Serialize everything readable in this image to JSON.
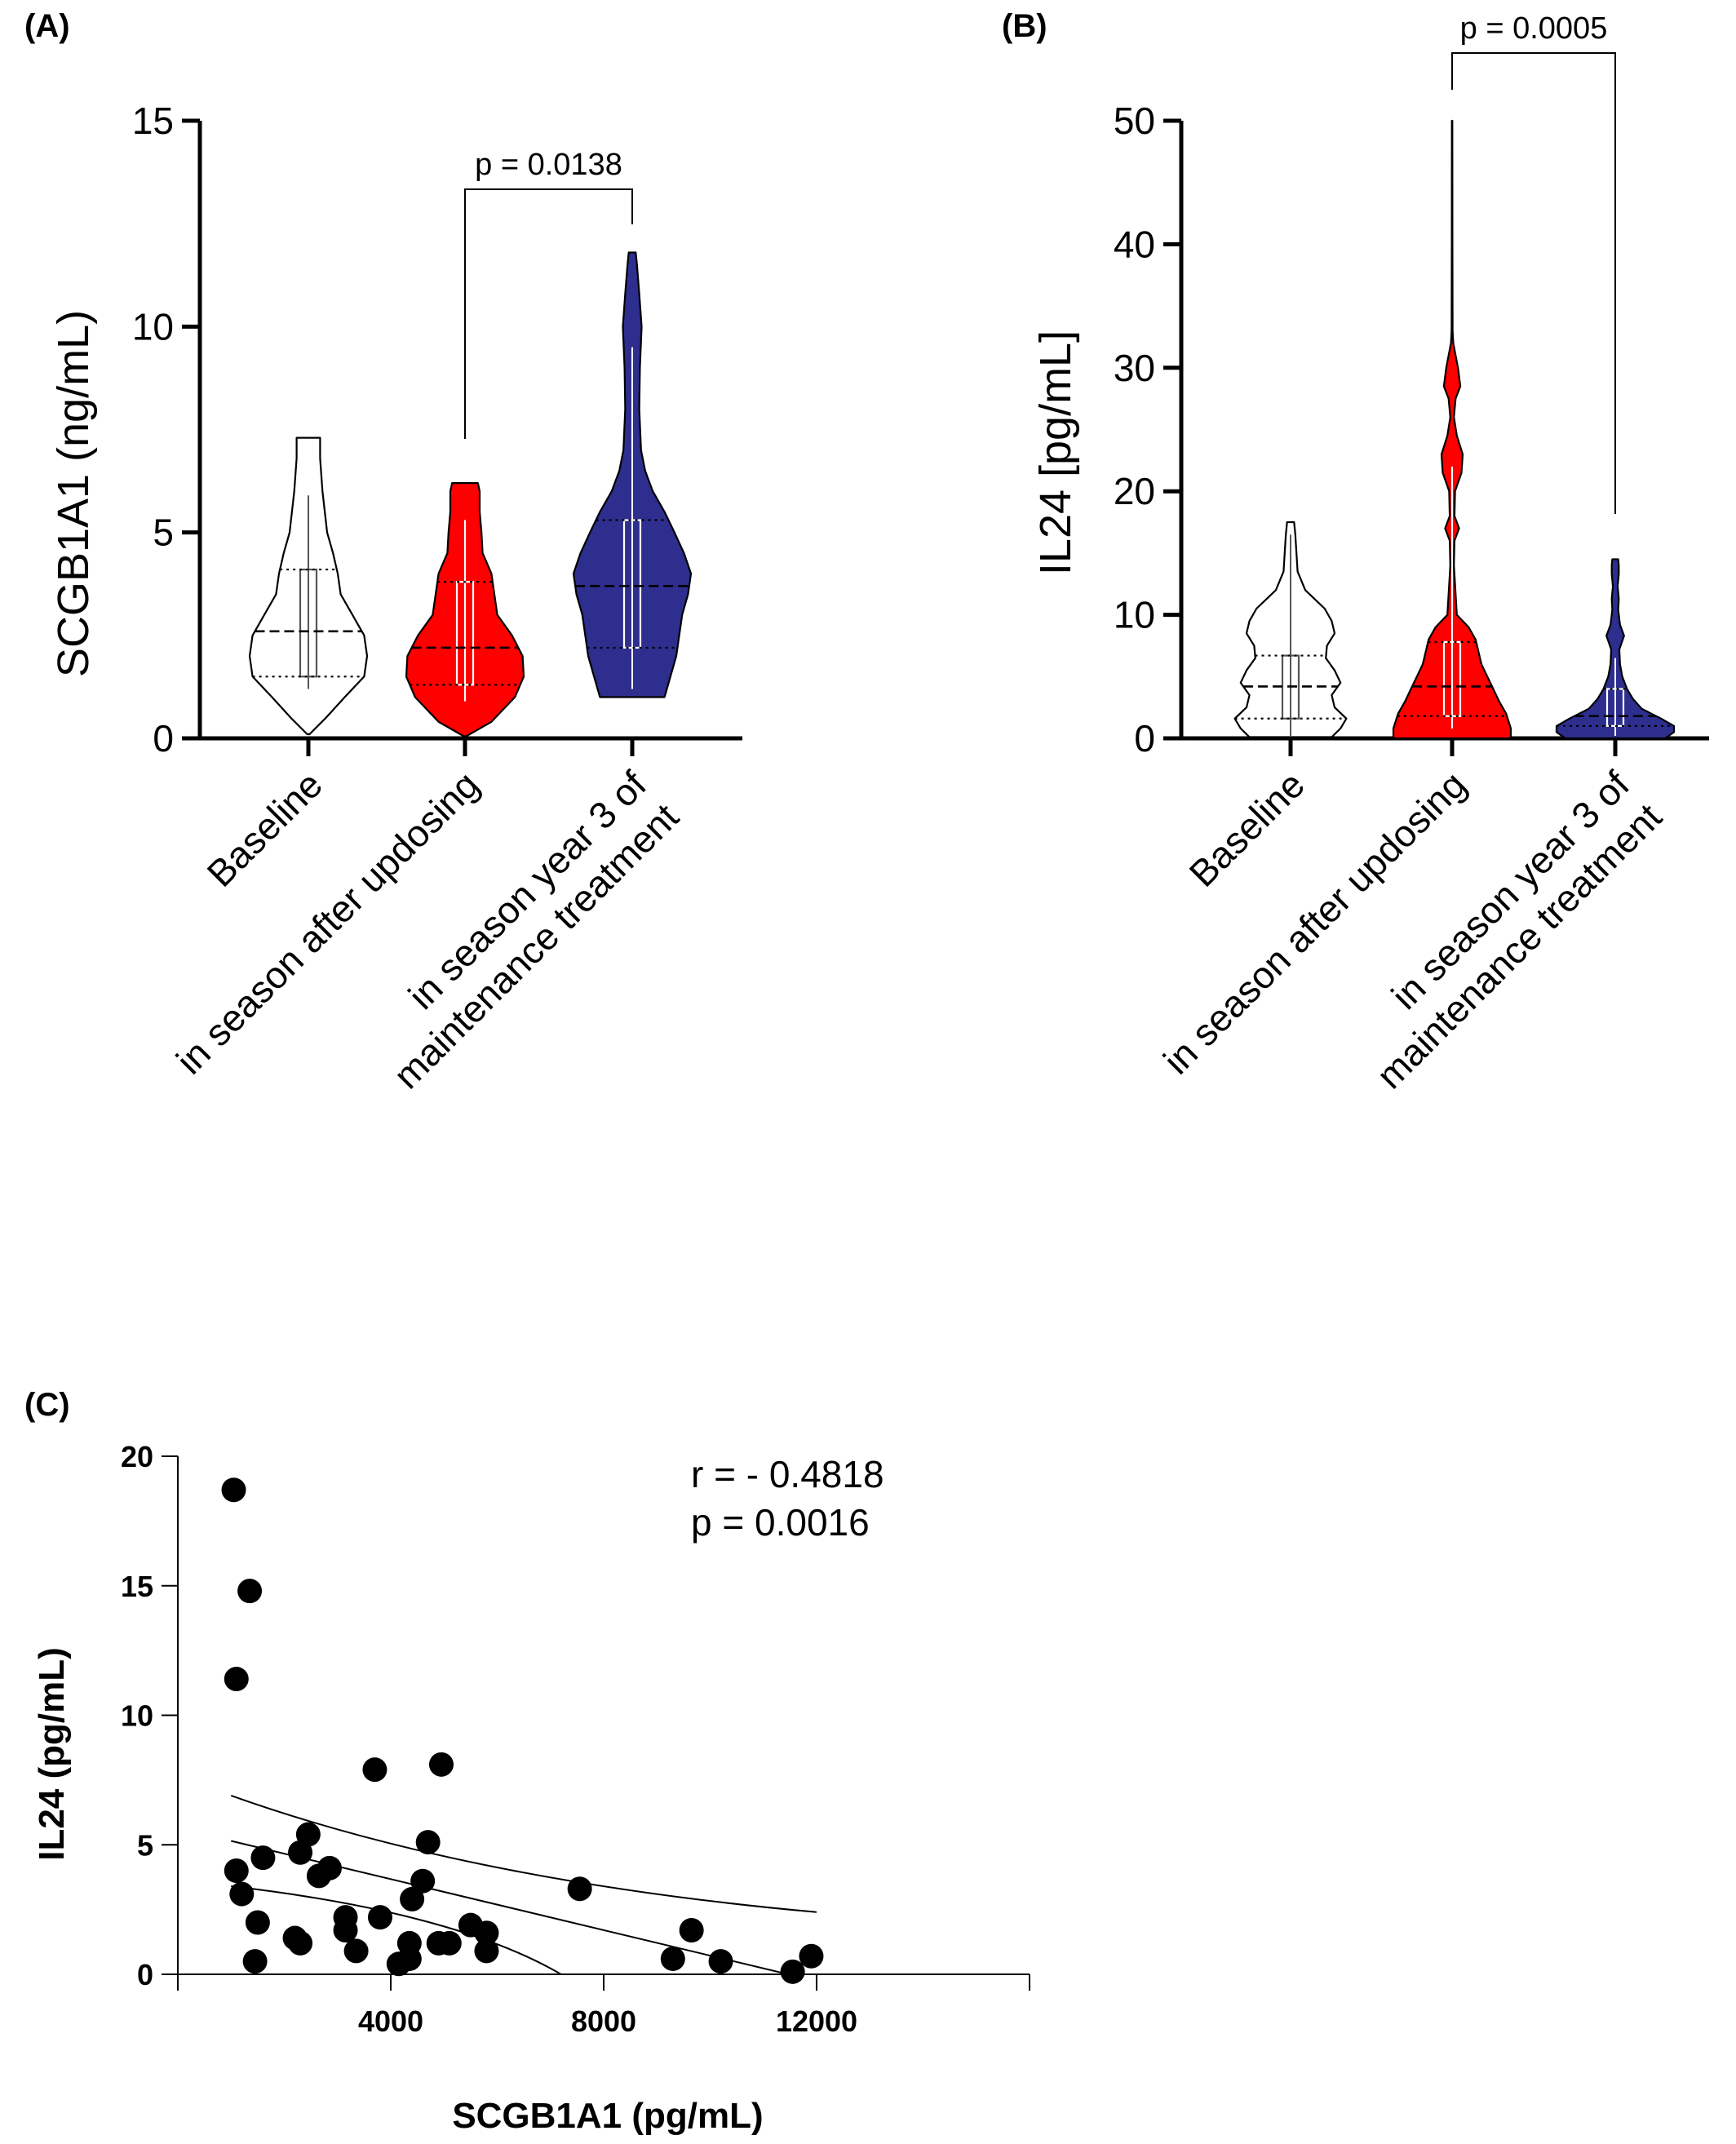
{
  "chart_data": [
    {
      "panel": "(A)",
      "type": "violin",
      "ylabel": "SCGB1A1 (ng/mL)",
      "ylim": [
        0,
        15
      ],
      "yticks": [
        0,
        5,
        10,
        15
      ],
      "categories": [
        "Baseline",
        "in season after updosing",
        "in season year 3 of maintenance treatment"
      ],
      "category_lines": [
        [
          "Baseline"
        ],
        [
          "in season after updosing"
        ],
        [
          "in season year 3 of",
          "maintenance treatment"
        ]
      ],
      "colors": [
        "#ffffff",
        "#ff0000",
        "#2e2e8f"
      ],
      "violins": [
        {
          "min": 0.1,
          "max": 7.3,
          "median": 2.6,
          "q1": 1.5,
          "q3": 4.1,
          "whisker_low": 1.2,
          "whisker_high": 5.9,
          "profile": [
            [
              0.1,
              0.02
            ],
            [
              0.5,
              0.3
            ],
            [
              1.0,
              0.62
            ],
            [
              1.5,
              0.95
            ],
            [
              2.0,
              1.0
            ],
            [
              2.5,
              0.95
            ],
            [
              3.0,
              0.75
            ],
            [
              3.5,
              0.55
            ],
            [
              4.0,
              0.5
            ],
            [
              4.5,
              0.42
            ],
            [
              5.0,
              0.32
            ],
            [
              6.0,
              0.24
            ],
            [
              6.8,
              0.2
            ],
            [
              7.3,
              0.2
            ]
          ]
        },
        {
          "min": 0.05,
          "max": 6.2,
          "median": 2.2,
          "q1": 1.3,
          "q3": 3.8,
          "whisker_low": 0.9,
          "whisker_high": 5.3,
          "profile": [
            [
              0.05,
              0.02
            ],
            [
              0.4,
              0.45
            ],
            [
              1.0,
              0.85
            ],
            [
              1.5,
              1.0
            ],
            [
              2.0,
              0.98
            ],
            [
              2.5,
              0.8
            ],
            [
              3.0,
              0.55
            ],
            [
              3.5,
              0.5
            ],
            [
              4.0,
              0.45
            ],
            [
              4.5,
              0.3
            ],
            [
              5.0,
              0.28
            ],
            [
              5.5,
              0.25
            ],
            [
              6.0,
              0.25
            ],
            [
              6.2,
              0.22
            ]
          ]
        },
        {
          "min": 1.0,
          "max": 11.8,
          "median": 3.7,
          "q1": 2.2,
          "q3": 5.3,
          "whisker_low": 1.2,
          "whisker_high": 9.5,
          "profile": [
            [
              1.0,
              0.55
            ],
            [
              1.5,
              0.65
            ],
            [
              2.0,
              0.75
            ],
            [
              2.5,
              0.8
            ],
            [
              3.0,
              0.85
            ],
            [
              3.5,
              0.95
            ],
            [
              4.0,
              1.0
            ],
            [
              4.5,
              0.88
            ],
            [
              5.0,
              0.72
            ],
            [
              5.5,
              0.55
            ],
            [
              6.0,
              0.35
            ],
            [
              6.5,
              0.22
            ],
            [
              7.0,
              0.15
            ],
            [
              8.0,
              0.12
            ],
            [
              9.0,
              0.13
            ],
            [
              10.0,
              0.16
            ],
            [
              10.8,
              0.12
            ],
            [
              11.5,
              0.08
            ],
            [
              11.8,
              0.06
            ]
          ]
        }
      ],
      "comparison": {
        "from": 1,
        "to": 2,
        "label": "p = 0.0138"
      }
    },
    {
      "panel": "(B)",
      "type": "violin",
      "ylabel": "IL24 [pg/mL]",
      "ylim": [
        0,
        50
      ],
      "yticks": [
        0,
        10,
        20,
        30,
        40,
        50
      ],
      "categories": [
        "Baseline",
        "in season after updosing",
        "in season year 3 of maintenance treatment"
      ],
      "category_lines": [
        [
          "Baseline"
        ],
        [
          "in season after updosing"
        ],
        [
          "in season year 3 of",
          "maintenance treatment"
        ]
      ],
      "colors": [
        "#ffffff",
        "#ff0000",
        "#2e2e8f"
      ],
      "violins": [
        {
          "min": 0.1,
          "max": 17.5,
          "median": 4.2,
          "q1": 1.6,
          "q3": 6.7,
          "whisker_low": 0.2,
          "whisker_high": 16.5,
          "profile": [
            [
              0.1,
              0.7
            ],
            [
              0.8,
              0.85
            ],
            [
              1.6,
              0.95
            ],
            [
              2.5,
              0.75
            ],
            [
              3.5,
              0.7
            ],
            [
              4.5,
              0.85
            ],
            [
              5.5,
              0.75
            ],
            [
              6.5,
              0.6
            ],
            [
              7.5,
              0.62
            ],
            [
              8.5,
              0.75
            ],
            [
              9.5,
              0.7
            ],
            [
              10.5,
              0.58
            ],
            [
              12.0,
              0.25
            ],
            [
              13.5,
              0.12
            ],
            [
              15.0,
              0.1
            ],
            [
              16.5,
              0.08
            ],
            [
              17.5,
              0.06
            ]
          ]
        },
        {
          "min": 0.0,
          "max": 50,
          "median": 4.2,
          "q1": 1.8,
          "q3": 7.8,
          "whisker_low": 0.8,
          "whisker_high": 22,
          "profile": [
            [
              0.0,
              1.0
            ],
            [
              0.8,
              1.0
            ],
            [
              2.0,
              0.92
            ],
            [
              3.0,
              0.8
            ],
            [
              4.0,
              0.7
            ],
            [
              5.0,
              0.6
            ],
            [
              6.0,
              0.5
            ],
            [
              8.0,
              0.4
            ],
            [
              9.0,
              0.28
            ],
            [
              10.0,
              0.08
            ],
            [
              14.0,
              0.03
            ],
            [
              16.0,
              0.04
            ],
            [
              17.0,
              0.12
            ],
            [
              18.0,
              0.04
            ],
            [
              20.0,
              0.05
            ],
            [
              21.5,
              0.16
            ],
            [
              23.0,
              0.18
            ],
            [
              24.5,
              0.08
            ],
            [
              26.0,
              0.03
            ],
            [
              27.5,
              0.06
            ],
            [
              28.5,
              0.14
            ],
            [
              30.0,
              0.1
            ],
            [
              31.0,
              0.06
            ],
            [
              32.0,
              0.02
            ],
            [
              33.0,
              0.008
            ],
            [
              40.0,
              0.005
            ],
            [
              50,
              0.004
            ]
          ]
        },
        {
          "min": 0.0,
          "max": 14.5,
          "median": 1.8,
          "q1": 1.0,
          "q3": 4.0,
          "whisker_low": 0.2,
          "whisker_high": 6.5,
          "profile": [
            [
              0.0,
              0.85
            ],
            [
              0.5,
              1.0
            ],
            [
              1.0,
              1.0
            ],
            [
              1.6,
              0.78
            ],
            [
              2.4,
              0.45
            ],
            [
              3.2,
              0.3
            ],
            [
              4.0,
              0.2
            ],
            [
              5.0,
              0.12
            ],
            [
              6.0,
              0.08
            ],
            [
              7.2,
              0.07
            ],
            [
              8.3,
              0.15
            ],
            [
              9.2,
              0.08
            ],
            [
              10.4,
              0.05
            ],
            [
              11.3,
              0.06
            ],
            [
              12.3,
              0.04
            ],
            [
              13.3,
              0.06
            ],
            [
              14.0,
              0.06
            ],
            [
              14.5,
              0.05
            ]
          ]
        }
      ],
      "comparison": {
        "from": 1,
        "to": 2,
        "label": "p = 0.0005"
      }
    },
    {
      "panel": "(C)",
      "type": "scatter",
      "xlabel": "SCGB1A1 (pg/mL)",
      "ylabel": "IL24 (pg/mL)",
      "xlim": [
        0,
        16000
      ],
      "ylim": [
        0,
        20
      ],
      "xticks": [
        4000,
        8000,
        12000
      ],
      "yticks": [
        0,
        5,
        10,
        15,
        20
      ],
      "annotation_lines": [
        "r = - 0.4818",
        "p =  0.0016"
      ],
      "points": [
        [
          1050,
          18.7
        ],
        [
          1350,
          14.8
        ],
        [
          1100,
          11.4
        ],
        [
          1100,
          4.0
        ],
        [
          1200,
          3.1
        ],
        [
          1600,
          4.5
        ],
        [
          1500,
          2.0
        ],
        [
          1450,
          0.5
        ],
        [
          2200,
          1.4
        ],
        [
          2300,
          1.2
        ],
        [
          2300,
          4.7
        ],
        [
          2450,
          5.4
        ],
        [
          2650,
          3.8
        ],
        [
          2850,
          4.1
        ],
        [
          3150,
          2.2
        ],
        [
          3150,
          1.7
        ],
        [
          3350,
          0.9
        ],
        [
          3700,
          7.9
        ],
        [
          3800,
          2.2
        ],
        [
          4150,
          0.4
        ],
        [
          4350,
          0.6
        ],
        [
          4350,
          1.2
        ],
        [
          4400,
          2.9
        ],
        [
          4600,
          3.6
        ],
        [
          4700,
          5.1
        ],
        [
          4950,
          8.1
        ],
        [
          4900,
          1.2
        ],
        [
          5100,
          1.2
        ],
        [
          5500,
          1.9
        ],
        [
          5800,
          1.6
        ],
        [
          5800,
          0.9
        ],
        [
          7550,
          3.3
        ],
        [
          9300,
          0.6
        ],
        [
          9650,
          1.7
        ],
        [
          10200,
          0.5
        ],
        [
          11550,
          0.1
        ],
        [
          11900,
          0.7
        ]
      ],
      "fit": {
        "x_start": 1000,
        "y_start": 5.15,
        "slope": -0.000492,
        "ci_upper_end": [
          12000,
          2.4
        ],
        "ci_upper_start": 6.9,
        "ci_lower_start": 3.4
      }
    }
  ]
}
